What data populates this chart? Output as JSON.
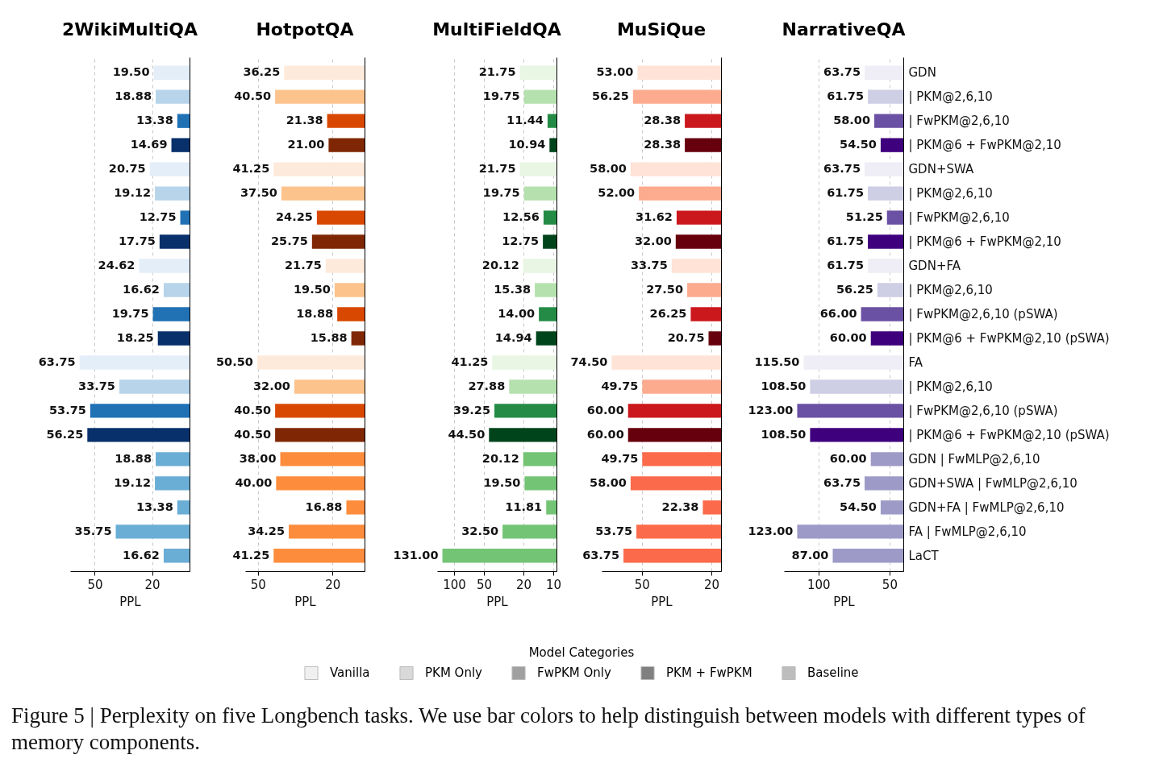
{
  "chart_data": [
    {
      "type": "bar",
      "orientation": "horizontal",
      "title": "2WikiMultiQA",
      "xlabel": "PPL",
      "log": "x",
      "grid": "x",
      "tick_labels": "x",
      "xlim": [
        74,
        11
      ],
      "xticks": [
        50,
        20
      ],
      "categories": [
        null,
        null,
        null,
        null,
        null,
        null,
        null,
        null,
        null,
        null,
        null,
        null,
        null,
        null,
        null,
        null,
        null,
        null,
        null,
        null,
        null
      ],
      "values": [
        19.5,
        18.88,
        13.38,
        14.69,
        20.75,
        19.12,
        12.75,
        17.75,
        24.62,
        16.62,
        19.75,
        18.25,
        63.75,
        33.75,
        53.75,
        56.25,
        18.88,
        19.12,
        13.38,
        35.75,
        16.62
      ],
      "value_labels": [
        "19.50",
        "18.88",
        "13.38",
        "14.69",
        "20.75",
        "19.12",
        "12.75",
        "17.75",
        "24.62",
        "16.62",
        "19.75",
        "18.25",
        "63.75",
        "33.75",
        "53.75",
        "56.25",
        "18.88",
        "19.12",
        "13.38",
        "35.75",
        "16.62"
      ],
      "colors": [
        "#e3eef9",
        "#b7d4ea",
        "#2171b5",
        "#08306b",
        "#e3eef9",
        "#b7d4ea",
        "#2171b5",
        "#08306b",
        "#e3eef9",
        "#b7d4ea",
        "#2171b5",
        "#08306b",
        "#e3eef9",
        "#b7d4ea",
        "#2171b5",
        "#08306b",
        "#6aaed6",
        "#6aaed6",
        "#6aaed6",
        "#6aaed6",
        "#6aaed6"
      ]
    },
    {
      "type": "bar",
      "orientation": "horizontal",
      "title": "HotpotQA",
      "xlabel": "PPL",
      "log": "x",
      "grid": "x",
      "tick_labels": "x",
      "xlim": [
        58.5,
        13.5
      ],
      "xticks": [
        50,
        20
      ],
      "categories": [
        null,
        null,
        null,
        null,
        null,
        null,
        null,
        null,
        null,
        null,
        null,
        null,
        null,
        null,
        null,
        null,
        null,
        null,
        null,
        null,
        null
      ],
      "values": [
        36.25,
        40.5,
        21.38,
        21.0,
        41.25,
        37.5,
        24.25,
        25.75,
        21.75,
        19.5,
        18.88,
        15.88,
        50.5,
        32.0,
        40.5,
        40.5,
        38.0,
        40.0,
        16.88,
        34.25,
        41.25
      ],
      "value_labels": [
        "36.25",
        "40.50",
        "21.38",
        "21.00",
        "41.25",
        "37.50",
        "24.25",
        "25.75",
        "21.75",
        "19.50",
        "18.88",
        "15.88",
        "50.50",
        "32.00",
        "40.50",
        "40.50",
        "38.00",
        "40.00",
        "16.88",
        "34.25",
        "41.25"
      ],
      "colors": [
        "#feeadb",
        "#fdc38d",
        "#d94801",
        "#7f2704",
        "#feeadb",
        "#fdc38d",
        "#d94801",
        "#7f2704",
        "#feeadb",
        "#fdc38d",
        "#d94801",
        "#7f2704",
        "#feeadb",
        "#fdc38d",
        "#d94801",
        "#7f2704",
        "#fd8d3c",
        "#fd8d3c",
        "#fd8d3c",
        "#fd8d3c",
        "#fd8d3c"
      ]
    },
    {
      "type": "bar",
      "orientation": "horizontal",
      "title": "MultiFieldQA",
      "xlabel": "PPL",
      "log": "x",
      "grid": "x",
      "tick_labels": "x",
      "xlim": [
        148,
        9.3
      ],
      "xticks": [
        100,
        50,
        20,
        10
      ],
      "categories": [
        null,
        null,
        null,
        null,
        null,
        null,
        null,
        null,
        null,
        null,
        null,
        null,
        null,
        null,
        null,
        null,
        null,
        null,
        null,
        null,
        null
      ],
      "values": [
        21.75,
        19.75,
        11.44,
        10.94,
        21.75,
        19.75,
        12.56,
        12.75,
        20.12,
        15.38,
        14.0,
        14.94,
        41.25,
        27.88,
        39.25,
        44.5,
        20.12,
        19.5,
        11.81,
        32.5,
        131.0
      ],
      "value_labels": [
        "21.75",
        "19.75",
        "11.44",
        "10.94",
        "21.75",
        "19.75",
        "12.56",
        "12.75",
        "20.12",
        "15.38",
        "14.00",
        "14.94",
        "41.25",
        "27.88",
        "39.25",
        "44.50",
        "20.12",
        "19.50",
        "11.81",
        "32.50",
        "131.00"
      ],
      "colors": [
        "#e8f6e3",
        "#b5e1ae",
        "#238b45",
        "#00441b",
        "#e8f6e3",
        "#b5e1ae",
        "#238b45",
        "#00441b",
        "#e8f6e3",
        "#b5e1ae",
        "#238b45",
        "#00441b",
        "#e8f6e3",
        "#b5e1ae",
        "#238b45",
        "#00441b",
        "#74c476",
        "#74c476",
        "#74c476",
        "#74c476",
        "#74c476"
      ]
    },
    {
      "type": "bar",
      "orientation": "horizontal",
      "title": "MuSiQue",
      "xlabel": "PPL",
      "log": "x",
      "grid": "x",
      "tick_labels": "x",
      "xlim": [
        85,
        17.6
      ],
      "xticks": [
        50,
        20
      ],
      "categories": [
        null,
        null,
        null,
        null,
        null,
        null,
        null,
        null,
        null,
        null,
        null,
        null,
        null,
        null,
        null,
        null,
        null,
        null,
        null,
        null,
        null
      ],
      "values": [
        53.0,
        56.25,
        28.38,
        28.38,
        58.0,
        52.0,
        31.62,
        32.0,
        33.75,
        27.5,
        26.25,
        20.75,
        74.5,
        49.75,
        60.0,
        60.0,
        49.75,
        58.0,
        22.38,
        53.75,
        63.75
      ],
      "value_labels": [
        "53.00",
        "56.25",
        "28.38",
        "28.38",
        "58.00",
        "52.00",
        "31.62",
        "32.00",
        "33.75",
        "27.50",
        "26.25",
        "20.75",
        "74.50",
        "49.75",
        "60.00",
        "60.00",
        "49.75",
        "58.00",
        "22.38",
        "53.75",
        "63.75"
      ],
      "colors": [
        "#fee3d6",
        "#fcab8f",
        "#cb181d",
        "#67000d",
        "#fee3d6",
        "#fcab8f",
        "#cb181d",
        "#67000d",
        "#fee3d6",
        "#fcab8f",
        "#cb181d",
        "#67000d",
        "#fee3d6",
        "#fcab8f",
        "#cb181d",
        "#67000d",
        "#fb6a4a",
        "#fb6a4a",
        "#fb6a4a",
        "#fb6a4a",
        "#fb6a4a"
      ]
    },
    {
      "type": "bar",
      "orientation": "horizontal",
      "title": "NarrativeQA",
      "xlabel": "PPL",
      "log": "x",
      "grid": "x",
      "xlim": [
        140,
        43.7
      ],
      "xticks": [
        100,
        50
      ],
      "categories": [
        "GDN",
        "| PKM@2,6,10",
        "| FwPKM@2,6,10",
        "| PKM@6 + FwPKM@2,10",
        "GDN+SWA",
        "| PKM@2,6,10",
        "| FwPKM@2,6,10",
        "| PKM@6 + FwPKM@2,10",
        "GDN+FA",
        "| PKM@2,6,10",
        "| FwPKM@2,6,10 (pSWA)",
        "| PKM@6 + FwPKM@2,10 (pSWA)",
        "FA",
        "| PKM@2,6,10",
        "| FwPKM@2,6,10 (pSWA)",
        "| PKM@6 + FwPKM@2,10 (pSWA)",
        "GDN | FwMLP@2,6,10",
        "GDN+SWA | FwMLP@2,6,10",
        "GDN+FA | FwMLP@2,6,10",
        "FA | FwMLP@2,6,10",
        "LaCT"
      ],
      "values": [
        63.75,
        61.75,
        58.0,
        54.5,
        63.75,
        61.75,
        51.25,
        61.75,
        61.75,
        56.25,
        66.0,
        60.0,
        115.5,
        108.5,
        123.0,
        108.5,
        60.0,
        63.75,
        54.5,
        123.0,
        87.0
      ],
      "value_labels": [
        "63.75",
        "61.75",
        "58.00",
        "54.50",
        "63.75",
        "61.75",
        "51.25",
        "61.75",
        "61.75",
        "56.25",
        "66.00",
        "60.00",
        "115.50",
        "108.50",
        "123.00",
        "108.50",
        "60.00",
        "63.75",
        "54.50",
        "123.00",
        "87.00"
      ],
      "colors": [
        "#efedf5",
        "#cecee5",
        "#6a51a3",
        "#3f007d",
        "#efedf5",
        "#cecee5",
        "#6a51a3",
        "#3f007d",
        "#efedf5",
        "#cecee5",
        "#6a51a3",
        "#3f007d",
        "#efedf5",
        "#cecee5",
        "#6a51a3",
        "#3f007d",
        "#9e9ac8",
        "#9e9ac8",
        "#9e9ac8",
        "#9e9ac8",
        "#9e9ac8"
      ]
    },
    {
      "type": "other",
      "legend_title": "Model Categories",
      "categories": [
        "Vanilla",
        "PKM Only",
        "FwPKM Only",
        "PKM + FwPKM",
        "Baseline"
      ],
      "colors": [
        "#f0f0f0",
        "#d9d9d9",
        "#a0a0a0",
        "#808080",
        "#bdbdbd"
      ],
      "annotations": [
        "Figure 5 | Perplexity on five Longbench tasks. We use bar colors to help distinguish between models with different types of memory components."
      ]
    }
  ]
}
